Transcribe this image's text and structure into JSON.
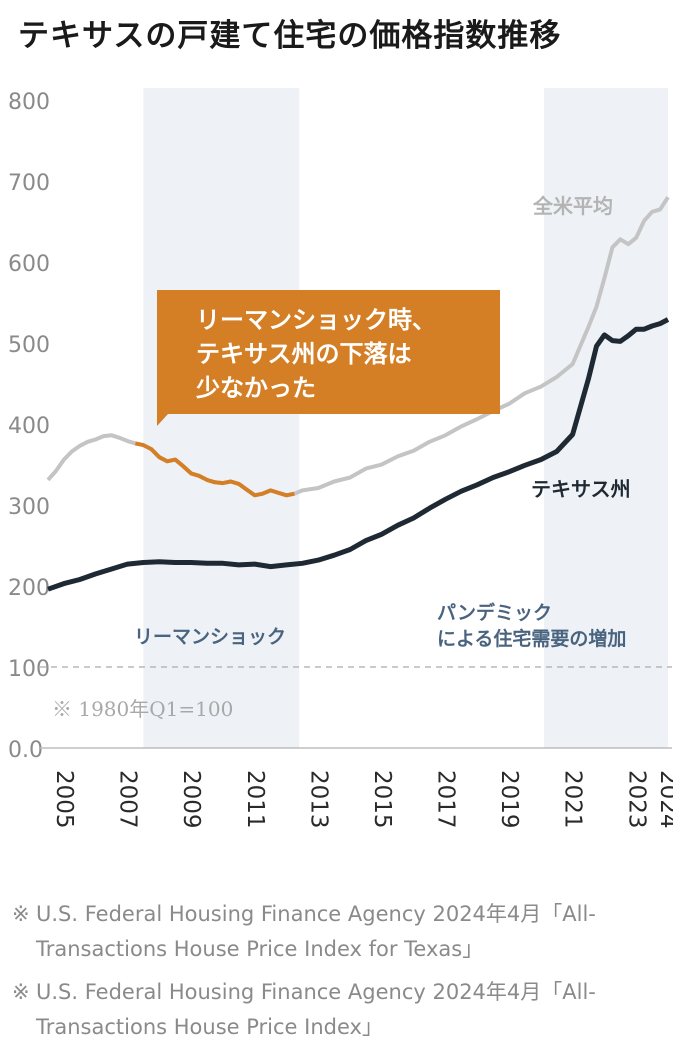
{
  "title": "テキサスの戸建て住宅の価格指数推移",
  "callout": [
    "リーマンショック時、",
    "テキサス州の下落は",
    "少なかった"
  ],
  "note": "※ 1980年Q1=100",
  "sources": [
    "U.S. Federal Housing Finance Agency 2024年4月「All-Transactions House Price Index for Texas」",
    "U.S. Federal Housing Finance Agency 2024年4月「All-Transactions House Price Index」"
  ],
  "source_mark": "※",
  "colors": {
    "texas": "#1e2933",
    "us": "#c4c4c4",
    "crisis": "#d47e25",
    "shade": "#eef2f6",
    "muted_label": "#4a6480",
    "axis": "#8a8a8a"
  },
  "chart_data": {
    "type": "line",
    "title": "テキサスの戸建て住宅の価格指数推移",
    "xlabel": "",
    "ylabel": "",
    "xlim": [
      2005.0,
      2024.5
    ],
    "ylim": [
      0,
      800
    ],
    "yticks": [
      0,
      100,
      200,
      300,
      400,
      500,
      600,
      700,
      800
    ],
    "ytick_labels": [
      "0.0",
      "100",
      "200",
      "300",
      "400",
      "500",
      "600",
      "700",
      "800"
    ],
    "xticks": [
      2005,
      2007,
      2009,
      2011,
      2013,
      2015,
      2017,
      2019,
      2021,
      2023,
      2024
    ],
    "xtick_labels": [
      "2005",
      "2007",
      "2009",
      "2011",
      "2013",
      "2015",
      "2017",
      "2019",
      "2021",
      "2023",
      "2024"
    ],
    "reference_line": {
      "y": 100,
      "style": "dashed"
    },
    "shaded_periods": [
      {
        "x0": 2008.0,
        "x1": 2012.9,
        "label": "リーマンショック"
      },
      {
        "x0": 2020.6,
        "x1": 2024.5,
        "label_lines": [
          "パンデミック",
          "による住宅需要の増加"
        ]
      }
    ],
    "series": [
      {
        "name": "全米平均",
        "x": [
          2005.0,
          2005.25,
          2005.5,
          2005.75,
          2006.0,
          2006.25,
          2006.5,
          2006.75,
          2007.0,
          2007.25,
          2007.5,
          2007.75,
          2008.0,
          2008.25,
          2008.5,
          2008.75,
          2009.0,
          2009.25,
          2009.5,
          2009.75,
          2010.0,
          2010.25,
          2010.5,
          2010.75,
          2011.0,
          2011.25,
          2011.5,
          2011.75,
          2012.0,
          2012.25,
          2012.5,
          2012.75,
          2013.0,
          2013.5,
          2014.0,
          2014.5,
          2015.0,
          2015.5,
          2016.0,
          2016.5,
          2017.0,
          2017.5,
          2018.0,
          2018.5,
          2019.0,
          2019.5,
          2020.0,
          2020.5,
          2021.0,
          2021.5,
          2022.0,
          2022.25,
          2022.5,
          2022.75,
          2023.0,
          2023.25,
          2023.5,
          2023.75,
          2024.0,
          2024.25,
          2024.5
        ],
        "values": [
          331,
          342,
          356,
          366,
          373,
          378,
          381,
          385,
          386,
          383,
          379,
          376,
          374,
          369,
          359,
          354,
          356,
          348,
          339,
          336,
          331,
          328,
          327,
          329,
          326,
          319,
          312,
          314,
          318,
          315,
          312,
          314,
          318,
          321,
          329,
          334,
          345,
          350,
          360,
          367,
          378,
          386,
          397,
          406,
          416,
          425,
          438,
          446,
          458,
          474,
          520,
          545,
          580,
          618,
          628,
          622,
          630,
          651,
          662,
          665,
          680
        ],
        "color": "#c4c4c4",
        "label": "全米平均"
      },
      {
        "name": "テキサス州",
        "x": [
          2005.0,
          2005.5,
          2006.0,
          2006.5,
          2007.0,
          2007.5,
          2008.0,
          2008.5,
          2009.0,
          2009.5,
          2010.0,
          2010.5,
          2011.0,
          2011.5,
          2012.0,
          2012.5,
          2013.0,
          2013.5,
          2014.0,
          2014.5,
          2015.0,
          2015.5,
          2016.0,
          2016.5,
          2017.0,
          2017.5,
          2018.0,
          2018.5,
          2019.0,
          2019.5,
          2020.0,
          2020.5,
          2021.0,
          2021.5,
          2022.0,
          2022.25,
          2022.5,
          2022.75,
          2023.0,
          2023.25,
          2023.5,
          2023.75,
          2024.0,
          2024.25,
          2024.5
        ],
        "values": [
          196,
          203,
          208,
          215,
          221,
          227,
          229,
          230,
          229,
          229,
          228,
          228,
          226,
          227,
          224,
          226,
          228,
          232,
          238,
          245,
          256,
          264,
          275,
          284,
          296,
          307,
          317,
          325,
          334,
          341,
          349,
          356,
          366,
          387,
          456,
          496,
          510,
          503,
          502,
          509,
          517,
          517,
          521,
          524,
          529
        ],
        "color": "#1e2933",
        "label": "テキサス州"
      }
    ],
    "highlight": {
      "series": "全米平均",
      "x0": 2007.6,
      "x1": 2012.9,
      "color": "#d47e25"
    }
  }
}
